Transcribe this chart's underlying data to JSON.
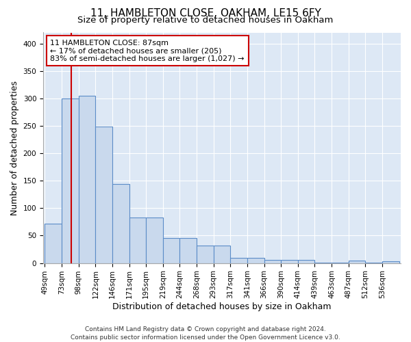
{
  "title": "11, HAMBLETON CLOSE, OAKHAM, LE15 6FY",
  "subtitle": "Size of property relative to detached houses in Oakham",
  "xlabel": "Distribution of detached houses by size in Oakham",
  "ylabel": "Number of detached properties",
  "bin_labels": [
    "49sqm",
    "73sqm",
    "98sqm",
    "122sqm",
    "146sqm",
    "171sqm",
    "195sqm",
    "219sqm",
    "244sqm",
    "268sqm",
    "293sqm",
    "317sqm",
    "341sqm",
    "366sqm",
    "390sqm",
    "414sqm",
    "439sqm",
    "463sqm",
    "487sqm",
    "512sqm",
    "536sqm"
  ],
  "bar_values": [
    72,
    300,
    305,
    249,
    144,
    83,
    83,
    45,
    45,
    32,
    32,
    9,
    9,
    6,
    6,
    6,
    1,
    1,
    4,
    1,
    3
  ],
  "bar_color": "#c9d9ed",
  "bar_edge_color": "#5b8cc8",
  "subject_bin_index": 1,
  "subject_line_color": "#cc0000",
  "annotation_text": "11 HAMBLETON CLOSE: 87sqm\n← 17% of detached houses are smaller (205)\n83% of semi-detached houses are larger (1,027) →",
  "annotation_box_color": "#ffffff",
  "annotation_box_edge": "#cc0000",
  "ylim": [
    0,
    420
  ],
  "yticks": [
    0,
    50,
    100,
    150,
    200,
    250,
    300,
    350,
    400
  ],
  "footer_line1": "Contains HM Land Registry data © Crown copyright and database right 2024.",
  "footer_line2": "Contains public sector information licensed under the Open Government Licence v3.0.",
  "background_color": "#ffffff",
  "plot_bg_color": "#dde8f5",
  "grid_color": "#ffffff",
  "title_fontsize": 11,
  "subtitle_fontsize": 9.5,
  "axis_label_fontsize": 9,
  "tick_fontsize": 7.5,
  "annotation_fontsize": 8,
  "footer_fontsize": 6.5
}
